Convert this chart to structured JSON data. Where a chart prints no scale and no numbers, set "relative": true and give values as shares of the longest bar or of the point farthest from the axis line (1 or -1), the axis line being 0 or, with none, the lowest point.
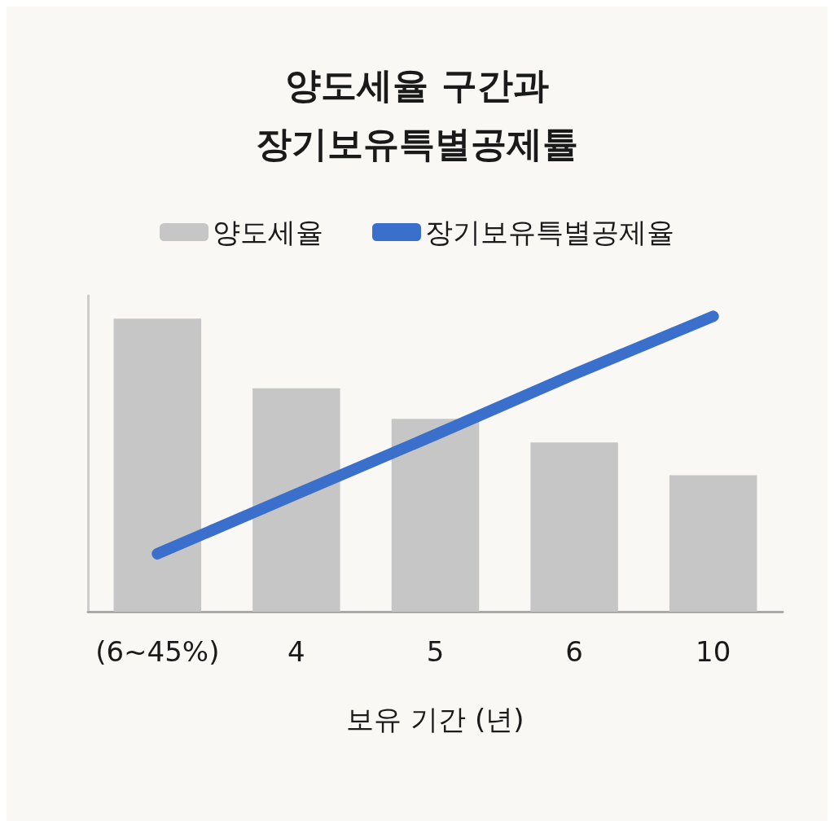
{
  "chart_data": {
    "type": "bar",
    "title": "양도세율 구간과\n장기보유특별공제튤",
    "xlabel": "보유 기간 (년)",
    "categories": [
      "(6~45%)",
      "4",
      "5",
      "6",
      "10"
    ],
    "relative": true,
    "legend": "top",
    "grid": false,
    "line_style": "solid",
    "series": [
      {
        "name": "양도세율",
        "color": "#c6c6c6",
        "values": [
          0.992,
          0.756,
          0.653,
          0.573,
          0.462
        ]
      },
      {
        "name": "장기보유특별공제율",
        "type": "line",
        "color": "#3a6fcc",
        "values": [
          0.196,
          0.398,
          0.599,
          0.804,
          1
        ]
      }
    ]
  }
}
